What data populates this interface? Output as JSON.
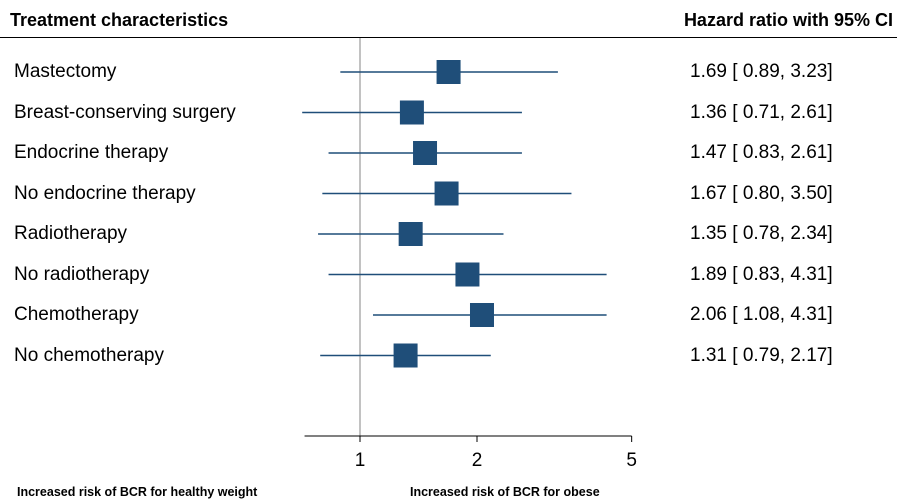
{
  "chart_data": {
    "type": "forest",
    "header_left": "Treatment characteristics",
    "header_right": "Hazard ratio with 95% CI",
    "x_scale": "log",
    "xlim": [
      0.72,
      5
    ],
    "reference_line": 1,
    "x_ticks": [
      1,
      2,
      5
    ],
    "x_tick_labels": [
      "1",
      "2",
      "5"
    ],
    "marker_color": "#1f4e79",
    "rows": [
      {
        "label": "Mastectomy",
        "hr": 1.69,
        "lower": 0.89,
        "upper": 3.23,
        "ci_text": "1.69 [ 0.89,  3.23]"
      },
      {
        "label": "Breast-conserving surgery",
        "hr": 1.36,
        "lower": 0.71,
        "upper": 2.61,
        "ci_text": "1.36 [ 0.71,  2.61]"
      },
      {
        "label": "Endocrine therapy",
        "hr": 1.47,
        "lower": 0.83,
        "upper": 2.61,
        "ci_text": "1.47 [ 0.83,  2.61]"
      },
      {
        "label": "No endocrine therapy",
        "hr": 1.67,
        "lower": 0.8,
        "upper": 3.5,
        "ci_text": "1.67 [ 0.80,  3.50]"
      },
      {
        "label": "Radiotherapy",
        "hr": 1.35,
        "lower": 0.78,
        "upper": 2.34,
        "ci_text": "1.35 [ 0.78,  2.34]"
      },
      {
        "label": "No radiotherapy",
        "hr": 1.89,
        "lower": 0.83,
        "upper": 4.31,
        "ci_text": "1.89 [ 0.83,  4.31]"
      },
      {
        "label": "Chemotherapy",
        "hr": 2.06,
        "lower": 1.08,
        "upper": 4.31,
        "ci_text": "2.06 [ 1.08,  4.31]"
      },
      {
        "label": "No chemotherapy",
        "hr": 1.31,
        "lower": 0.79,
        "upper": 2.17,
        "ci_text": "1.31 [ 0.79,  2.17]"
      }
    ],
    "footer_left": "Increased risk of BCR for healthy weight",
    "footer_right": "Increased risk of BCR for obese"
  }
}
